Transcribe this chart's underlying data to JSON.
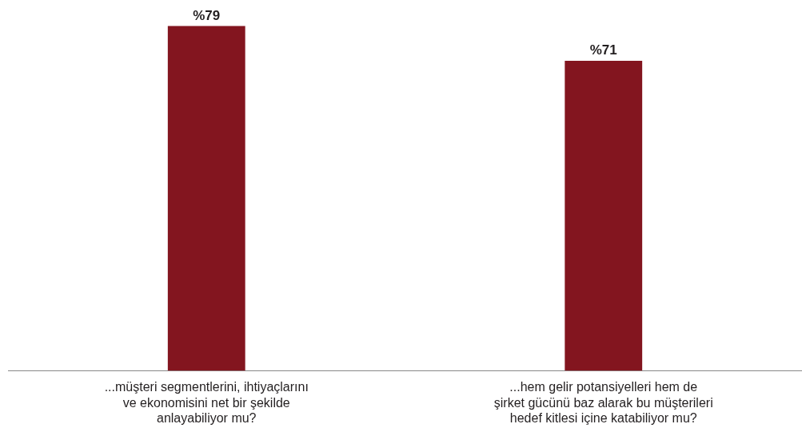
{
  "chart_data": {
    "type": "bar",
    "categories": [
      "...müşteri segmentlerini, ihtiyaçlarını ve ekonomisini net bir şekilde anlayabiliyor mu?",
      "...hem gelir potansiyelleri hem de şirket gücünü baz alarak bu müşterileri hedef kitlesi içine katabiliyor mu?"
    ],
    "values": [
      79,
      71
    ],
    "value_labels": [
      "%79",
      "%71"
    ],
    "color": "#83151f",
    "tick_labels": "x",
    "grid": false,
    "legend": false
  }
}
